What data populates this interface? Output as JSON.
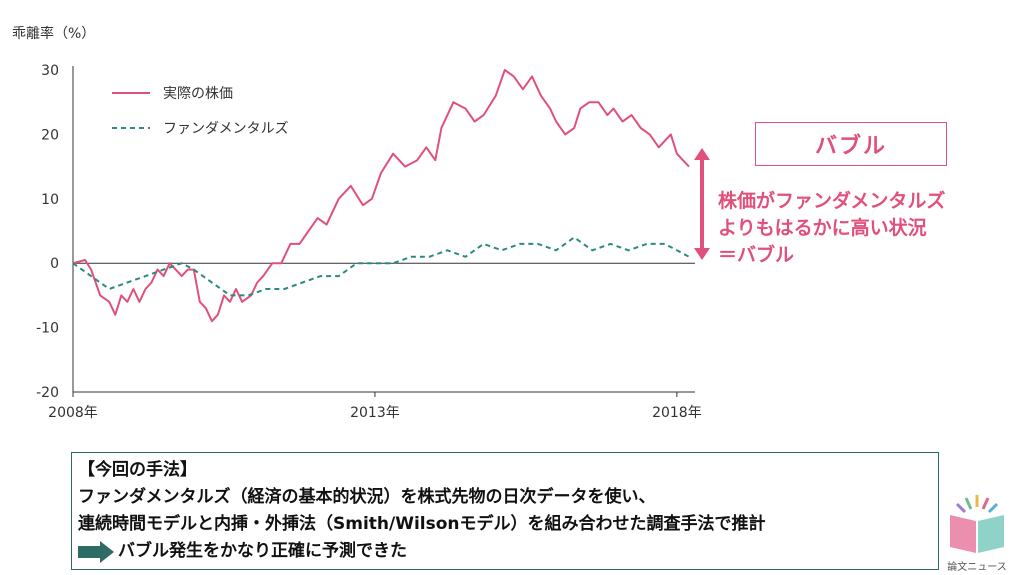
{
  "chart_data": {
    "type": "line",
    "ylabel": "乖離率（%）",
    "ylim": [
      -20,
      30
    ],
    "yticks": [
      30,
      20,
      10,
      0,
      -10,
      -20
    ],
    "xlim": [
      2008,
      2018.3
    ],
    "xticks": [
      {
        "value": 2008,
        "label": "2008年"
      },
      {
        "value": 2013,
        "label": "2013年"
      },
      {
        "value": 2018,
        "label": "2018年"
      }
    ],
    "legend_position": "top-left",
    "series": [
      {
        "name": "実際の株価",
        "color": "#e0507a",
        "style": "solid",
        "x": [
          2008.0,
          2008.2,
          2008.3,
          2008.45,
          2008.6,
          2008.7,
          2008.8,
          2008.9,
          2009.0,
          2009.1,
          2009.2,
          2009.3,
          2009.4,
          2009.5,
          2009.6,
          2009.7,
          2009.8,
          2009.9,
          2010.0,
          2010.1,
          2010.2,
          2010.3,
          2010.4,
          2010.5,
          2010.6,
          2010.7,
          2010.8,
          2010.95,
          2011.05,
          2011.15,
          2011.3,
          2011.45,
          2011.6,
          2011.75,
          2011.9,
          2012.05,
          2012.2,
          2012.4,
          2012.6,
          2012.8,
          2012.95,
          2013.1,
          2013.3,
          2013.5,
          2013.7,
          2013.85,
          2014.0,
          2014.1,
          2014.3,
          2014.5,
          2014.65,
          2014.8,
          2015.0,
          2015.15,
          2015.3,
          2015.45,
          2015.6,
          2015.75,
          2015.9,
          2016.0,
          2016.15,
          2016.3,
          2016.4,
          2016.55,
          2016.7,
          2016.85,
          2016.95,
          2017.1,
          2017.25,
          2017.4,
          2017.55,
          2017.7,
          2017.8,
          2017.9,
          2018.0,
          2018.1,
          2018.2
        ],
        "y": [
          0,
          0.5,
          -1,
          -5,
          -6,
          -8,
          -5,
          -6,
          -4,
          -6,
          -4,
          -3,
          -1,
          -2,
          0,
          -1,
          -2,
          -1,
          -1,
          -6,
          -7,
          -9,
          -8,
          -5,
          -6,
          -4,
          -6,
          -5,
          -3,
          -2,
          0,
          0,
          3,
          3,
          5,
          7,
          6,
          10,
          12,
          9,
          10,
          14,
          17,
          15,
          16,
          18,
          16,
          21,
          25,
          24,
          22,
          23,
          26,
          30,
          29,
          27,
          29,
          26,
          24,
          22,
          20,
          21,
          24,
          25,
          25,
          23,
          24,
          22,
          23,
          21,
          20,
          18,
          19,
          20,
          17,
          16,
          15
        ]
      },
      {
        "name": "ファンダメンタルズ",
        "color": "#2a8a80",
        "style": "dashed",
        "x": [
          2008.0,
          2008.3,
          2008.6,
          2008.9,
          2009.2,
          2009.5,
          2009.8,
          2010.0,
          2010.3,
          2010.6,
          2010.9,
          2011.2,
          2011.5,
          2011.8,
          2012.1,
          2012.4,
          2012.7,
          2013.0,
          2013.3,
          2013.6,
          2013.9,
          2014.2,
          2014.5,
          2014.8,
          2015.1,
          2015.4,
          2015.7,
          2016.0,
          2016.3,
          2016.6,
          2016.9,
          2017.2,
          2017.5,
          2017.8,
          2018.0,
          2018.2
        ],
        "y": [
          0,
          -2,
          -4,
          -3,
          -2,
          -1,
          0,
          -1,
          -3,
          -5,
          -5,
          -4,
          -4,
          -3,
          -2,
          -2,
          0,
          0,
          0,
          1,
          1,
          2,
          1,
          3,
          2,
          3,
          3,
          2,
          4,
          2,
          3,
          2,
          3,
          3,
          2,
          1
        ]
      }
    ],
    "annotation": {
      "box_label": "バブル",
      "lines": [
        "株価がファンダメンタルズ",
        "よりもはるかに高い状況",
        "＝バブル"
      ]
    }
  },
  "method": {
    "title": "【今回の手法】",
    "lines": [
      "ファンダメンタルズ（経済の基本的状況）を株式先物の日次データを使い、",
      "連続時間モデルと内挿・外挿法（Smith/Wilsonモデル）を組み合わせた調査手法で推計"
    ],
    "result": "バブル発生をかなり正確に予測できた"
  },
  "logo": {
    "caption": "論文ニュース"
  }
}
